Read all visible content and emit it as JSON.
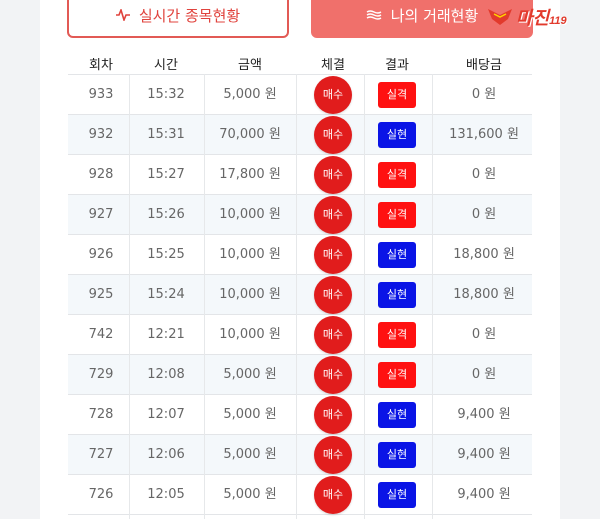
{
  "tabs": {
    "live_label": "실시간 종목현황",
    "my_label": "나의 거래현황"
  },
  "logo": {
    "text": "마진",
    "number": "119"
  },
  "columns": [
    "회차",
    "시간",
    "금액",
    "체결",
    "결과",
    "배당금"
  ],
  "colors": {
    "accent": "#e0433d",
    "buy": "#e11c1c",
    "fail": "#ff1111",
    "win": "#0a14e6"
  },
  "rows": [
    {
      "round": "933",
      "time": "15:32",
      "amount": "5,000 원",
      "exec": "매수",
      "result": "실격",
      "result_type": "fail",
      "payout": "0 원"
    },
    {
      "round": "932",
      "time": "15:31",
      "amount": "70,000 원",
      "exec": "매수",
      "result": "실현",
      "result_type": "win",
      "payout": "131,600 원"
    },
    {
      "round": "928",
      "time": "15:27",
      "amount": "17,800 원",
      "exec": "매수",
      "result": "실격",
      "result_type": "fail",
      "payout": "0 원"
    },
    {
      "round": "927",
      "time": "15:26",
      "amount": "10,000 원",
      "exec": "매수",
      "result": "실격",
      "result_type": "fail",
      "payout": "0 원"
    },
    {
      "round": "926",
      "time": "15:25",
      "amount": "10,000 원",
      "exec": "매수",
      "result": "실현",
      "result_type": "win",
      "payout": "18,800 원"
    },
    {
      "round": "925",
      "time": "15:24",
      "amount": "10,000 원",
      "exec": "매수",
      "result": "실현",
      "result_type": "win",
      "payout": "18,800 원"
    },
    {
      "round": "742",
      "time": "12:21",
      "amount": "10,000 원",
      "exec": "매수",
      "result": "실격",
      "result_type": "fail",
      "payout": "0 원"
    },
    {
      "round": "729",
      "time": "12:08",
      "amount": "5,000 원",
      "exec": "매수",
      "result": "실격",
      "result_type": "fail",
      "payout": "0 원"
    },
    {
      "round": "728",
      "time": "12:07",
      "amount": "5,000 원",
      "exec": "매수",
      "result": "실현",
      "result_type": "win",
      "payout": "9,400 원"
    },
    {
      "round": "727",
      "time": "12:06",
      "amount": "5,000 원",
      "exec": "매수",
      "result": "실현",
      "result_type": "win",
      "payout": "9,400 원"
    },
    {
      "round": "726",
      "time": "12:05",
      "amount": "5,000 원",
      "exec": "매수",
      "result": "실현",
      "result_type": "win",
      "payout": "9,400 원"
    }
  ]
}
